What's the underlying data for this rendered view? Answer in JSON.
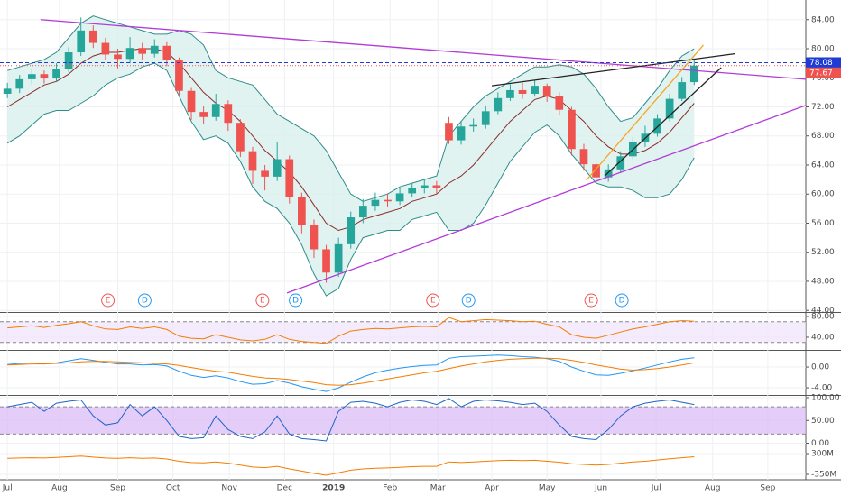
{
  "chart_data": [
    {
      "type": "candlestick",
      "xlim": [
        -0.6,
        65.1
      ],
      "xticks": [
        {
          "value": 0,
          "label": "Jul"
        },
        {
          "value": 4.25,
          "label": "Aug"
        },
        {
          "value": 9,
          "label": "Sep"
        },
        {
          "value": 13.5,
          "label": "Oct"
        },
        {
          "value": 18.1,
          "label": "Nov"
        },
        {
          "value": 22.6,
          "label": "Dec"
        },
        {
          "value": 26.6,
          "label": "2019"
        },
        {
          "value": 31.2,
          "label": "Feb"
        },
        {
          "value": 35.1,
          "label": "Mar"
        },
        {
          "value": 39.5,
          "label": "Apr"
        },
        {
          "value": 44,
          "label": "May"
        },
        {
          "value": 48.4,
          "label": "Jun"
        },
        {
          "value": 52.9,
          "label": "Jul"
        },
        {
          "value": 57.5,
          "label": "Aug"
        },
        {
          "value": 62,
          "label": "Sep"
        }
      ],
      "ylim": [
        43.9,
        86.7
      ],
      "yticks": [
        {
          "value": 44,
          "label": "44.00"
        },
        {
          "value": 48,
          "label": "48.00"
        },
        {
          "value": 52,
          "label": "52.00"
        },
        {
          "value": 56,
          "label": "56.00"
        },
        {
          "value": 60,
          "label": "60.00"
        },
        {
          "value": 64,
          "label": "64.00"
        },
        {
          "value": 68,
          "label": "68.00"
        },
        {
          "value": 72,
          "label": "72.00"
        },
        {
          "value": 76,
          "label": "76.00"
        },
        {
          "value": 80,
          "label": "80.00"
        },
        {
          "value": 84,
          "label": "84.00"
        }
      ],
      "up_color": "#26a69a",
      "down_color": "#ef5350",
      "open": [
        73.8,
        74.5,
        75.8,
        76.5,
        75.9,
        77.2,
        79.5,
        82.5,
        80.8,
        79.2,
        78.6,
        80.1,
        79.3,
        80.4,
        78.5,
        74.2,
        71.3,
        70.6,
        72.4,
        69.8,
        65.9,
        63.2,
        62.4,
        64.8,
        59.6,
        55.7,
        52.4,
        49.2,
        53.1,
        56.8,
        58.4,
        59.2,
        59.0,
        60.1,
        60.8,
        61.2,
        69.8,
        67.4,
        69.3,
        69.5,
        71.4,
        73.2,
        74.3,
        73.8,
        74.9,
        73.5,
        71.6,
        66.2,
        64.1,
        62.3,
        63.4,
        65.2,
        67.1,
        68.3,
        70.4,
        73.1,
        75.4
      ],
      "high": [
        75.3,
        76.4,
        77.3,
        77.0,
        78.0,
        80.2,
        84.3,
        83.2,
        81.5,
        80.0,
        81.6,
        80.8,
        81.3,
        80.9,
        78.8,
        74.6,
        72.1,
        73.8,
        72.9,
        70.3,
        66.5,
        64.0,
        67.2,
        65.3,
        60.2,
        56.5,
        53.0,
        54.0,
        57.6,
        59.3,
        60.2,
        60.1,
        60.9,
        61.5,
        62.0,
        61.8,
        70.6,
        70.1,
        70.4,
        72.2,
        74.0,
        75.1,
        75.3,
        75.6,
        75.2,
        74.0,
        72.0,
        66.9,
        64.6,
        64.1,
        65.9,
        67.8,
        69.4,
        71.0,
        73.8,
        76.1,
        78.4
      ],
      "low": [
        73.2,
        73.9,
        75.1,
        75.2,
        75.4,
        76.8,
        79.0,
        80.1,
        78.4,
        77.3,
        78.0,
        78.5,
        78.8,
        77.6,
        73.5,
        70.2,
        69.6,
        70.1,
        68.7,
        65.1,
        61.4,
        60.5,
        61.8,
        58.7,
        54.6,
        51.2,
        47.8,
        48.6,
        52.5,
        56.0,
        57.7,
        58.2,
        58.5,
        59.6,
        60.1,
        60.0,
        66.9,
        66.8,
        68.6,
        69.0,
        71.0,
        72.8,
        73.1,
        73.4,
        72.7,
        70.8,
        65.3,
        63.2,
        61.4,
        61.7,
        62.9,
        64.8,
        66.5,
        67.9,
        70.0,
        72.8,
        75.0
      ],
      "close": [
        74.5,
        75.8,
        76.5,
        75.9,
        77.2,
        79.5,
        82.5,
        80.8,
        79.2,
        78.6,
        80.1,
        79.3,
        80.4,
        78.5,
        74.2,
        71.3,
        70.6,
        72.4,
        69.8,
        65.9,
        63.2,
        62.4,
        64.8,
        59.6,
        55.7,
        52.4,
        49.2,
        53.1,
        56.8,
        58.4,
        59.2,
        59.0,
        60.1,
        60.8,
        61.2,
        60.9,
        67.4,
        69.3,
        69.5,
        71.4,
        73.2,
        74.3,
        73.8,
        74.9,
        73.5,
        71.6,
        66.2,
        64.1,
        62.3,
        63.4,
        65.2,
        67.1,
        68.3,
        70.4,
        73.1,
        75.4,
        77.67
      ],
      "bands": {
        "band_color": "#2e8b8b",
        "fill": "#d8f0ee",
        "middle_color": "#8b2a2a",
        "upper": [
          77,
          77.5,
          78,
          78.5,
          79.5,
          81.5,
          83.5,
          84.5,
          84,
          83.5,
          83,
          82.5,
          82,
          82,
          82.5,
          82,
          80.5,
          77,
          76,
          75.5,
          75,
          73,
          71,
          70,
          69,
          68,
          66,
          63,
          60,
          59,
          59.5,
          60,
          61,
          61.5,
          62,
          62.5,
          68,
          70,
          72,
          73.5,
          74.5,
          75.5,
          76.5,
          77.5,
          77.5,
          77.8,
          77.5,
          76.5,
          74.5,
          72,
          70,
          70.5,
          72.5,
          74.5,
          77,
          79,
          80
        ],
        "middle": [
          72,
          73,
          74,
          75,
          75.5,
          76.5,
          78,
          79,
          79.5,
          79.5,
          79.8,
          80,
          80,
          79.5,
          78,
          76,
          74,
          72.5,
          71.5,
          70,
          68,
          66,
          64.5,
          63,
          61,
          58.5,
          56,
          55,
          55.5,
          56.5,
          57,
          57.5,
          58,
          59,
          59.5,
          60,
          61.5,
          62.5,
          64,
          66,
          68,
          70,
          71.5,
          73,
          73.5,
          73,
          71.5,
          70,
          68,
          66.5,
          65.5,
          65.5,
          66,
          67,
          68.5,
          70.5,
          72.5
        ],
        "lower": [
          67,
          68,
          69.5,
          71,
          71.5,
          71.5,
          72.5,
          73.5,
          75,
          76,
          76.5,
          77.5,
          78,
          77,
          73.5,
          70,
          67.5,
          68,
          67,
          64.5,
          61,
          59,
          58,
          56,
          53,
          49,
          46,
          47,
          51,
          54,
          54.5,
          55,
          55,
          56.5,
          57,
          57.5,
          55,
          55,
          56,
          58.5,
          61.5,
          64.5,
          66.5,
          68.5,
          69.5,
          68,
          65.5,
          63.5,
          61.5,
          61,
          61,
          60.5,
          59.5,
          59.5,
          60,
          62,
          65
        ]
      },
      "price_lines": [
        {
          "value": 78.08,
          "color": "#1e3bd6"
        },
        {
          "value": 77.67,
          "color": "#ef5350"
        }
      ],
      "trendlines": [
        {
          "color": "#b23bd6",
          "points": [
            [
              2.7,
              84
            ],
            [
              65.1,
              75.8
            ]
          ]
        },
        {
          "color": "#b23bd6",
          "points": [
            [
              22.8,
              46.4
            ],
            [
              65.1,
              72.2
            ]
          ]
        },
        {
          "color": "#222222",
          "points": [
            [
              39.5,
              74.9
            ],
            [
              59.3,
              79.3
            ]
          ]
        },
        {
          "color": "#222222",
          "points": [
            [
              48.7,
              62.5
            ],
            [
              58.2,
              77.4
            ]
          ]
        },
        {
          "color": "#f5a623",
          "points": [
            [
              47.2,
              61.9
            ],
            [
              56.75,
              80.5
            ]
          ]
        }
      ],
      "events": [
        {
          "x": 8.2,
          "label": "E"
        },
        {
          "x": 11.2,
          "label": "D"
        },
        {
          "x": 20.8,
          "label": "E"
        },
        {
          "x": 23.5,
          "label": "D"
        },
        {
          "x": 34.7,
          "label": "E"
        },
        {
          "x": 37.6,
          "label": "D"
        },
        {
          "x": 47.6,
          "label": "E"
        },
        {
          "x": 50.1,
          "label": "D"
        }
      ]
    },
    {
      "type": "line",
      "ylim": [
        15.6,
        85.2
      ],
      "yticks": [
        {
          "value": 40,
          "label": "40.00"
        },
        {
          "value": 80,
          "label": "80.00"
        }
      ],
      "bands": [
        30,
        70
      ],
      "band_fill": "#f0e4fb",
      "series": [
        {
          "color": "#f57c00",
          "values": [
            58,
            60,
            62,
            59,
            63,
            66,
            70,
            62,
            56,
            55,
            60,
            57,
            60,
            55,
            42,
            38,
            37,
            45,
            40,
            35,
            33,
            36,
            45,
            36,
            32,
            30,
            28,
            42,
            52,
            55,
            57,
            56,
            58,
            60,
            61,
            60,
            78,
            70,
            72,
            74,
            73,
            72,
            70,
            71,
            65,
            60,
            45,
            40,
            38,
            44,
            50,
            56,
            60,
            65,
            70,
            72,
            71
          ]
        }
      ]
    },
    {
      "type": "line",
      "ylim": [
        -5.2,
        2.96
      ],
      "yticks": [
        {
          "value": -4,
          "label": "-4.00"
        },
        {
          "value": 0,
          "label": "0.00"
        }
      ],
      "series": [
        {
          "color": "#2196f3",
          "values": [
            0.5,
            0.7,
            0.8,
            0.6,
            0.8,
            1.2,
            1.6,
            1.3,
            0.9,
            0.6,
            0.6,
            0.4,
            0.5,
            0.2,
            -0.8,
            -1.6,
            -2,
            -1.7,
            -2.1,
            -2.8,
            -3.3,
            -3.2,
            -2.6,
            -3.1,
            -3.8,
            -4.3,
            -4.7,
            -4,
            -2.9,
            -1.9,
            -1.1,
            -0.6,
            -0.2,
            0.1,
            0.3,
            0.4,
            1.7,
            2,
            2.1,
            2.2,
            2.3,
            2.2,
            2.0,
            1.9,
            1.6,
            1.1,
            0,
            -0.8,
            -1.5,
            -1.6,
            -1.2,
            -0.7,
            -0.2,
            0.4,
            1.0,
            1.5,
            1.8
          ]
        },
        {
          "color": "#f57c00",
          "values": [
            0.4,
            0.5,
            0.6,
            0.6,
            0.7,
            0.8,
            1.0,
            1.1,
            1.1,
            1.0,
            0.9,
            0.8,
            0.7,
            0.6,
            0.3,
            -0.1,
            -0.5,
            -0.8,
            -1.0,
            -1.4,
            -1.8,
            -2.1,
            -2.2,
            -2.4,
            -2.7,
            -3.0,
            -3.4,
            -3.5,
            -3.4,
            -3.1,
            -2.7,
            -2.3,
            -1.9,
            -1.5,
            -1.1,
            -0.8,
            -0.3,
            0.2,
            0.6,
            1.0,
            1.3,
            1.5,
            1.6,
            1.7,
            1.7,
            1.6,
            1.3,
            0.9,
            0.4,
            0,
            -0.4,
            -0.6,
            -0.5,
            -0.3,
            0,
            0.4,
            0.8
          ]
        }
      ]
    },
    {
      "type": "line",
      "ylim": [
        -1,
        102
      ],
      "yticks": [
        {
          "value": 0,
          "label": "0.00"
        },
        {
          "value": 50,
          "label": "50.00"
        },
        {
          "value": 100,
          "label": "100.00"
        }
      ],
      "bands": [
        20,
        80
      ],
      "band_fill": "#d9b8f5",
      "series": [
        {
          "color": "#1e64c8",
          "values": [
            80,
            85,
            90,
            70,
            88,
            92,
            95,
            60,
            40,
            45,
            85,
            60,
            80,
            50,
            15,
            10,
            12,
            60,
            30,
            15,
            10,
            25,
            60,
            20,
            10,
            8,
            5,
            70,
            90,
            92,
            88,
            80,
            90,
            95,
            92,
            85,
            98,
            80,
            92,
            95,
            93,
            90,
            85,
            88,
            70,
            40,
            15,
            10,
            8,
            30,
            60,
            80,
            88,
            92,
            95,
            90,
            85
          ]
        }
      ]
    },
    {
      "type": "line",
      "ylim": [
        -520000000.0,
        526000000.0
      ],
      "yticks": [
        {
          "value": -350000000.0,
          "label": "-350M"
        },
        {
          "value": 300000000.0,
          "label": "300M"
        }
      ],
      "series": [
        {
          "color": "#f57c00",
          "values": [
            150000000.0,
            160000000.0,
            170000000.0,
            160000000.0,
            180000000.0,
            200000000.0,
            220000000.0,
            190000000.0,
            160000000.0,
            150000000.0,
            170000000.0,
            150000000.0,
            160000000.0,
            130000000.0,
            60000000.0,
            20000000.0,
            10000000.0,
            40000000.0,
            0,
            -60000000.0,
            -120000000.0,
            -140000000.0,
            -100000000.0,
            -180000000.0,
            -250000000.0,
            -320000000.0,
            -380000000.0,
            -300000000.0,
            -220000000.0,
            -180000000.0,
            -160000000.0,
            -150000000.0,
            -130000000.0,
            -110000000.0,
            -100000000.0,
            -100000000.0,
            40000000.0,
            20000000.0,
            40000000.0,
            60000000.0,
            80000000.0,
            90000000.0,
            80000000.0,
            90000000.0,
            60000000.0,
            30000000.0,
            -20000000.0,
            -40000000.0,
            -60000000.0,
            -40000000.0,
            0,
            40000000.0,
            60000000.0,
            100000000.0,
            140000000.0,
            170000000.0,
            200000000.0
          ]
        }
      ]
    }
  ]
}
